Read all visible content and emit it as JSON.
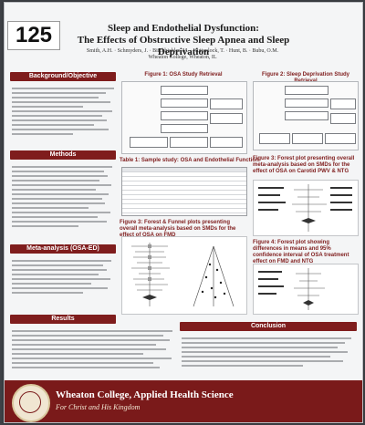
{
  "poster": {
    "number": "125",
    "title_line1": "Sleep and Endothelial Dysfunction:",
    "title_line2": "The Effects of Obstructive Sleep Apnea and Sleep Deprivation",
    "authors": "Smith, A.H. · Schmyders, J. · Birchbichler, M. · Huttenlock, T. · Hunt, B. · Bubu, O.M.",
    "affiliation": "Wheaton College, Wheaton, IL"
  },
  "sections": {
    "background": "Background/Objective",
    "methods": "Methods",
    "meta_analysis": "Meta-analysis (OSA-ED)",
    "results": "Results",
    "conclusion": "Conclusion"
  },
  "figures": {
    "fig1": "Figure 1: OSA Study Retrieval",
    "fig2": "Figure 2: Sleep Deprivation Study Retrieval",
    "table1": "Table 1: Sample study: OSA and Endothelial Function",
    "fig3": "Figure 3: Forest & Funnel plots presenting overall meta-analysis based on SMDs for the effect of OSA on FMD",
    "fig3b": "Figure 3: Forest plot presenting overall meta-analysis based on SMDs for the effect of OSA on Carotid PWV & NTG",
    "fig4": "Figure 4: Forest plot showing differences in means and 95% confidence interval of OSA treatment effect on FMD and NTG"
  },
  "footer": {
    "name": "Wheaton College, Applied Health Science",
    "motto": "For Christ and His Kingdom"
  }
}
